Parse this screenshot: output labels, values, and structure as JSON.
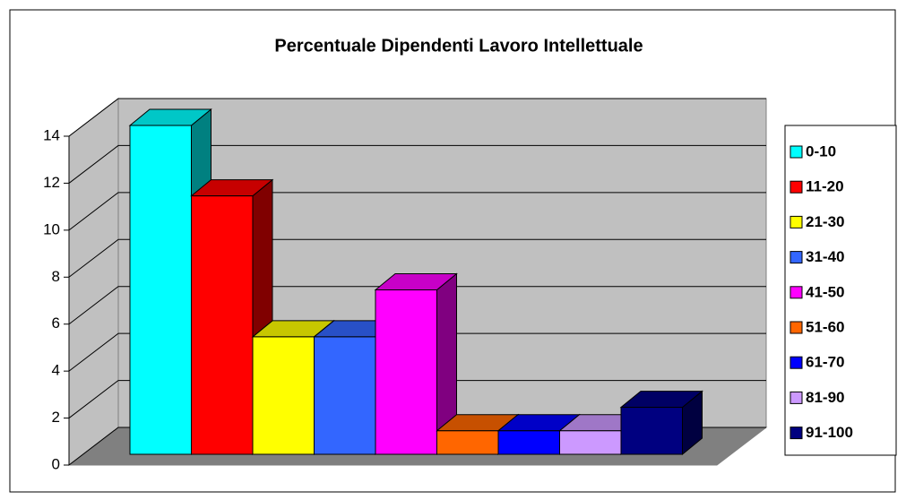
{
  "chart_data": {
    "type": "bar3d",
    "title": "Percentuale Dipendenti Lavoro Intellettuale",
    "series": [
      {
        "name": "0-10",
        "color": "#00ffff",
        "values": [
          14
        ]
      },
      {
        "name": "11-20",
        "color": "#ff0000",
        "values": [
          11
        ]
      },
      {
        "name": "21-30",
        "color": "#ffff00",
        "values": [
          5
        ]
      },
      {
        "name": "31-40",
        "color": "#3366ff",
        "values": [
          5
        ]
      },
      {
        "name": "41-50",
        "color": "#ff00ff",
        "values": [
          7
        ]
      },
      {
        "name": "51-60",
        "color": "#ff6600",
        "values": [
          1
        ]
      },
      {
        "name": "61-70",
        "color": "#0000ff",
        "values": [
          1
        ]
      },
      {
        "name": "81-90",
        "color": "#cc99ff",
        "values": [
          1
        ]
      },
      {
        "name": "91-100",
        "color": "#000080",
        "values": [
          2
        ]
      }
    ],
    "ylim": [
      0,
      14
    ],
    "yticks": [
      0,
      2,
      4,
      6,
      8,
      10,
      12,
      14
    ],
    "grid": true,
    "legend": "right"
  }
}
